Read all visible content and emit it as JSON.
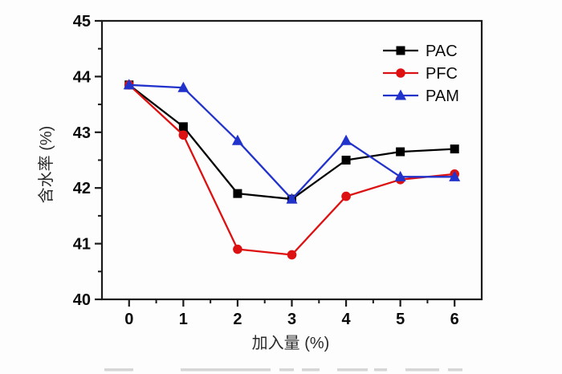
{
  "chart_data": {
    "type": "line",
    "title": "",
    "xlabel": "加入量 (%)",
    "ylabel": "含水率 (%)",
    "x": [
      0,
      1,
      2,
      3,
      4,
      5,
      6
    ],
    "series": [
      {
        "name": "PAC",
        "marker": "square",
        "color": "#000000",
        "values": [
          43.85,
          43.1,
          41.9,
          41.8,
          42.5,
          42.65,
          42.7
        ]
      },
      {
        "name": "PFC",
        "marker": "circle",
        "color": "#dd1111",
        "values": [
          43.85,
          42.95,
          40.9,
          40.8,
          41.85,
          42.15,
          42.25
        ]
      },
      {
        "name": "PAM",
        "marker": "triangle-up",
        "color": "#2233cc",
        "values": [
          43.85,
          43.8,
          42.85,
          41.8,
          42.85,
          42.2,
          42.2
        ]
      }
    ],
    "xlim": [
      -0.5,
      6.5
    ],
    "ylim": [
      40,
      45
    ],
    "x_ticks": [
      0,
      1,
      2,
      3,
      4,
      5,
      6
    ],
    "y_ticks": [
      40,
      41,
      42,
      43,
      44,
      45
    ],
    "minor_tick_step": 0.5,
    "grid": false,
    "legend": {
      "position": "top-right",
      "entries": [
        "PAC",
        "PFC",
        "PAM"
      ]
    },
    "frame_color": "#1a1a1a"
  }
}
